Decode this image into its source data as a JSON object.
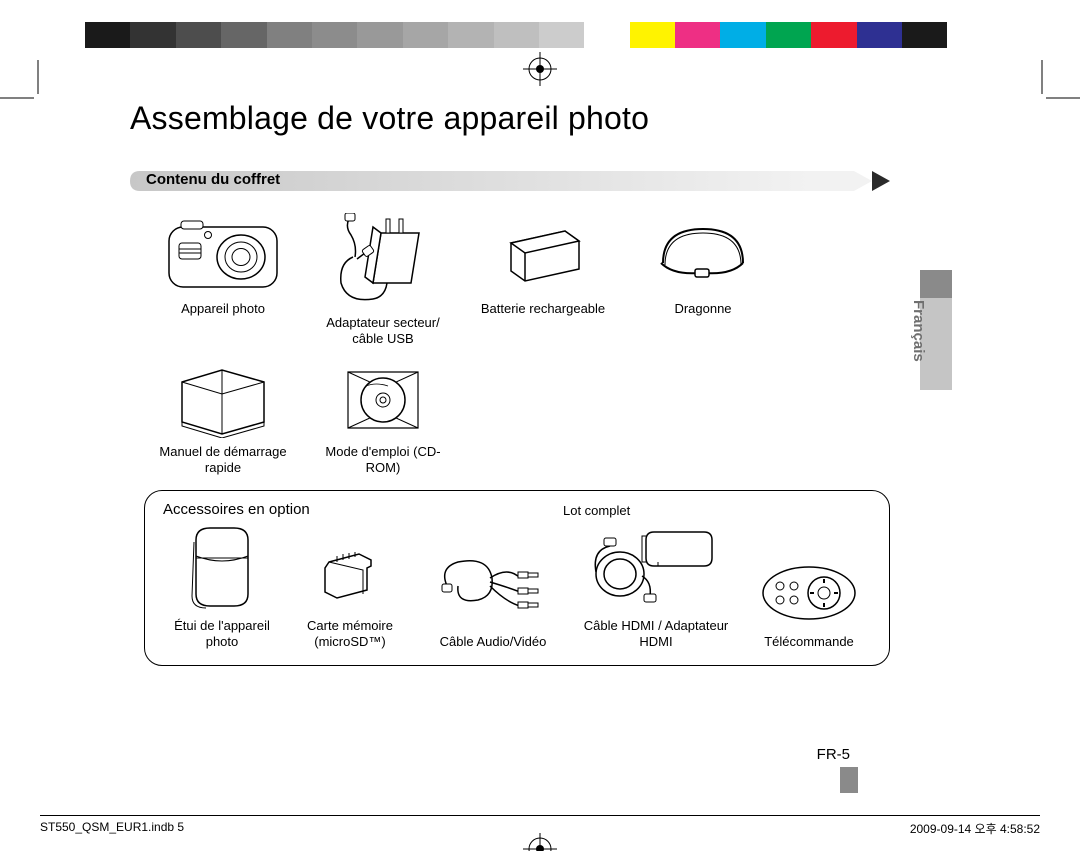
{
  "colorbar": {
    "swatches": [
      "#1a1a1a",
      "#333333",
      "#4d4d4d",
      "#666666",
      "#808080",
      "#8c8c8c",
      "#999999",
      "#a6a6a6",
      "#b3b3b3",
      "#bfbfbf",
      "#cccccc",
      "#ffffff",
      "#fff300",
      "#ee2f84",
      "#00aee6",
      "#00a550",
      "#ed1b2e",
      "#2e3092",
      "#1a1a1a",
      "#ffffff"
    ]
  },
  "title": "Assemblage de votre appareil photo",
  "section_header": "Contenu du coffret",
  "row1": {
    "camera": "Appareil photo",
    "adapter": "Adaptateur secteur/ câble USB",
    "battery": "Batterie rechargeable",
    "strap": "Dragonne"
  },
  "row2": {
    "qsm": "Manuel de démarrage rapide",
    "cdrom": "Mode d'emploi (CD-ROM)"
  },
  "optbox": {
    "title": "Accessoires en option",
    "lot": "Lot complet",
    "case": "Étui de l'appareil photo",
    "card": "Carte mémoire (microSD™)",
    "av": "Câble Audio/Vidéo",
    "hdmi": "Câble HDMI / Adaptateur HDMI",
    "remote": "Télécommande"
  },
  "language_tab": "Français",
  "page_number": "FR-5",
  "footer": {
    "left": "ST550_QSM_EUR1.indb   5",
    "right": "2009-09-14   오후 4:58:52"
  }
}
